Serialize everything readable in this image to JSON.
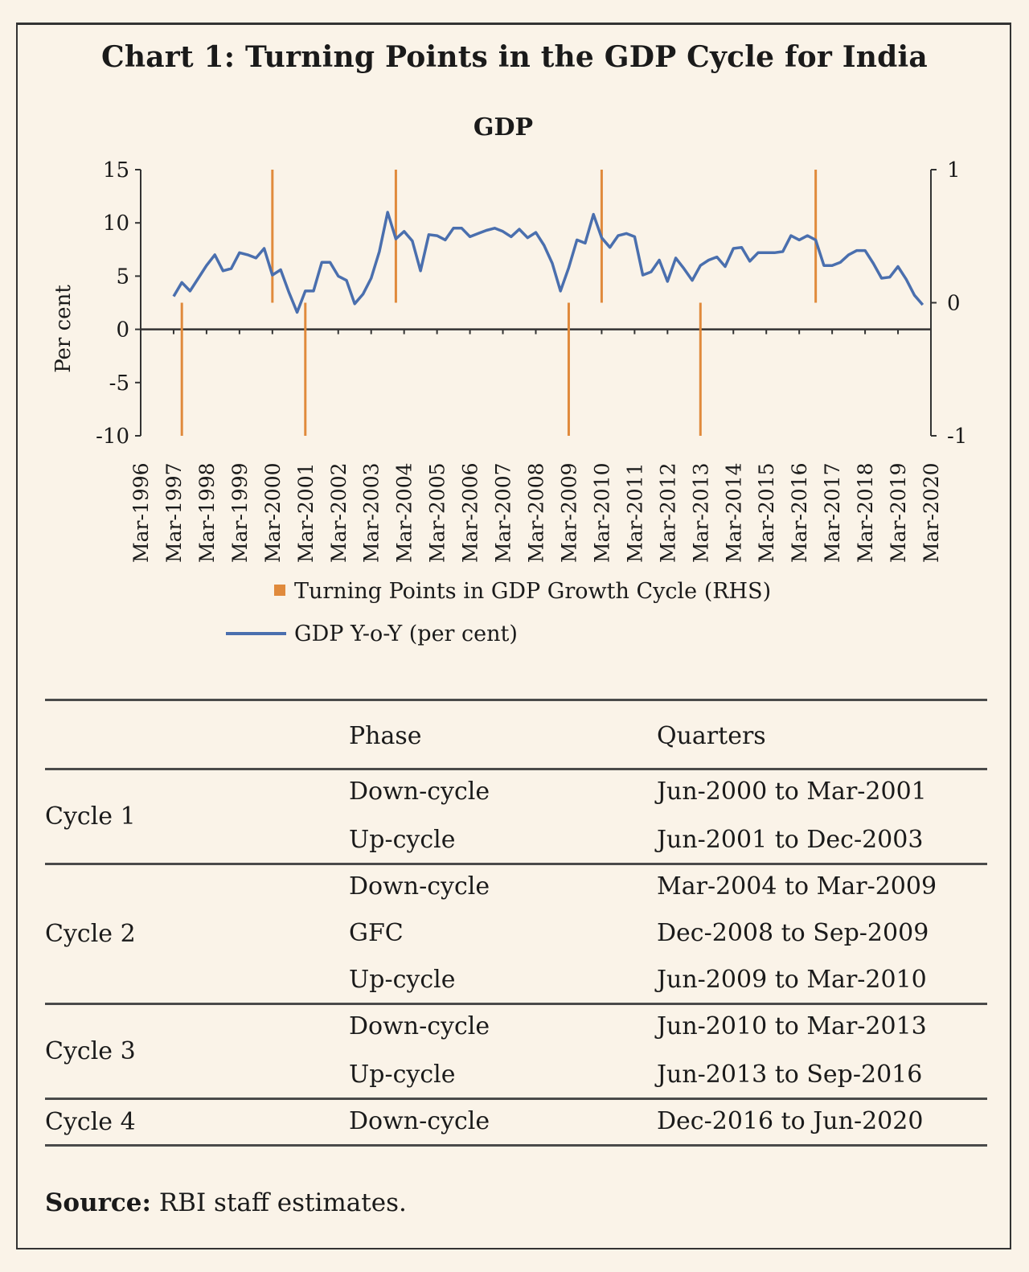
{
  "title": "Chart 1: Turning Points in the GDP Cycle for India",
  "chart_data": {
    "type": "line",
    "title": "GDP",
    "ylabel": "Per cent",
    "xlabel": "",
    "ylim": [
      -10,
      15
    ],
    "yticks": [
      "15",
      "10",
      "5",
      "0",
      "-5",
      "-10"
    ],
    "y2lim": [
      -1,
      1
    ],
    "y2ticks": [
      "1",
      "0",
      "-1"
    ],
    "x_tick_labels": [
      "Mar-1996",
      "Mar-1997",
      "Mar-1998",
      "Mar-1999",
      "Mar-2000",
      "Mar-2001",
      "Mar-2002",
      "Mar-2003",
      "Mar-2004",
      "Mar-2005",
      "Mar-2006",
      "Mar-2007",
      "Mar-2008",
      "Mar-2009",
      "Mar-2010",
      "Mar-2011",
      "Mar-2012",
      "Mar-2013",
      "Mar-2014",
      "Mar-2015",
      "Mar-2016",
      "Mar-2017",
      "Mar-2018",
      "Mar-2019",
      "Mar-2020"
    ],
    "x_start": "Mar-1996",
    "x_unit": "quarter",
    "series": [
      {
        "name": "GDP Y-o-Y (per cent)",
        "type": "line",
        "axis": "left",
        "color": "#4a6fae",
        "start_quarter_index": 4,
        "values": [
          3.1,
          4.4,
          3.6,
          4.8,
          6.0,
          7.0,
          5.5,
          5.7,
          7.2,
          7.0,
          6.7,
          7.6,
          5.1,
          5.6,
          3.5,
          1.6,
          3.6,
          3.6,
          6.3,
          6.3,
          5.0,
          4.6,
          2.4,
          3.3,
          4.8,
          7.3,
          11.0,
          8.5,
          9.2,
          8.3,
          5.5,
          8.9,
          8.8,
          8.4,
          9.5,
          9.5,
          8.7,
          9.0,
          9.3,
          9.5,
          9.2,
          8.7,
          9.4,
          8.6,
          9.1,
          7.9,
          6.2,
          3.6,
          5.8,
          8.4,
          8.1,
          10.8,
          8.6,
          7.7,
          8.8,
          9.0,
          8.7,
          5.1,
          5.4,
          6.5,
          4.5,
          6.7,
          5.7,
          4.6,
          6.0,
          6.5,
          6.8,
          5.9,
          7.6,
          7.7,
          6.4,
          7.2,
          7.2,
          7.2,
          7.3,
          8.8,
          8.4,
          8.8,
          8.4,
          6.0,
          6.0,
          6.3,
          7.0,
          7.4,
          7.4,
          6.2,
          4.8,
          4.9,
          5.9,
          4.7,
          3.2,
          2.3
        ]
      },
      {
        "name": "Turning Points in GDP Growth Cycle (RHS)",
        "type": "bar",
        "axis": "right",
        "color": "#e08a3c",
        "points": [
          {
            "quarter": "Jun-1997",
            "value": -1
          },
          {
            "quarter": "Mar-2000",
            "value": 1
          },
          {
            "quarter": "Mar-2001",
            "value": -1
          },
          {
            "quarter": "Dec-2003",
            "value": 1
          },
          {
            "quarter": "Mar-2009",
            "value": -1
          },
          {
            "quarter": "Mar-2010",
            "value": 1
          },
          {
            "quarter": "Mar-2013",
            "value": -1
          },
          {
            "quarter": "Sep-2016",
            "value": 1
          }
        ]
      }
    ],
    "legend": [
      {
        "label": "Turning Points in GDP Growth Cycle (RHS)",
        "marker": "square",
        "color": "#e08a3c"
      },
      {
        "label": "GDP Y-o-Y (per cent)",
        "marker": "line",
        "color": "#4a6fae"
      }
    ],
    "legend_position": "bottom",
    "grid": false
  },
  "table": {
    "headers": [
      "",
      "Phase",
      "Quarters"
    ],
    "groups": [
      {
        "cycle": "Cycle 1",
        "rows": [
          {
            "phase": "Down-cycle",
            "quarters": "Jun-2000 to Mar-2001"
          },
          {
            "phase": "Up-cycle",
            "quarters": "Jun-2001 to Dec-2003"
          }
        ]
      },
      {
        "cycle": "Cycle 2",
        "rows": [
          {
            "phase": "Down-cycle",
            "quarters": "Mar-2004 to Mar-2009"
          },
          {
            "phase": "GFC",
            "quarters": "Dec-2008 to Sep-2009"
          },
          {
            "phase": "Up-cycle",
            "quarters": "Jun-2009 to Mar-2010"
          }
        ]
      },
      {
        "cycle": "Cycle 3",
        "rows": [
          {
            "phase": "Down-cycle",
            "quarters": "Jun-2010 to Mar-2013"
          },
          {
            "phase": "Up-cycle",
            "quarters": "Jun-2013 to Sep-2016"
          }
        ]
      },
      {
        "cycle": "Cycle 4",
        "rows": [
          {
            "phase": "Down-cycle",
            "quarters": "Dec-2016 to Jun-2020"
          }
        ]
      }
    ]
  },
  "source": {
    "label": "Source:",
    "text": " RBI staff estimates."
  }
}
